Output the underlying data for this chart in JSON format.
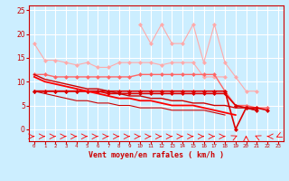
{
  "bg_color": "#cceeff",
  "grid_color": "#ffffff",
  "xlabel": "Vent moyen/en rafales ( km/h )",
  "x": [
    0,
    1,
    2,
    3,
    4,
    5,
    6,
    7,
    8,
    9,
    10,
    11,
    12,
    13,
    14,
    15,
    16,
    17,
    18,
    19,
    20,
    21,
    22,
    23
  ],
  "series": [
    {
      "color": "#ffaaaa",
      "marker": "D",
      "markersize": 2,
      "linewidth": 0.8,
      "data": [
        18,
        14.5,
        14.5,
        14,
        13.5,
        14,
        13,
        13,
        14,
        14,
        14,
        14,
        13.5,
        14,
        14,
        14,
        11,
        11,
        11,
        null,
        null,
        null,
        null,
        null
      ]
    },
    {
      "color": "#ffaaaa",
      "marker": "D",
      "markersize": 2,
      "linewidth": 0.8,
      "data": [
        null,
        null,
        null,
        null,
        null,
        null,
        null,
        null,
        null,
        null,
        22,
        18,
        22,
        18,
        18,
        22,
        14,
        22,
        14,
        11,
        8,
        8,
        null,
        null
      ]
    },
    {
      "color": "#ff6666",
      "marker": "D",
      "markersize": 2,
      "linewidth": 1.0,
      "data": [
        11.5,
        11.5,
        11,
        11,
        11,
        11,
        11,
        11,
        11,
        11,
        11.5,
        11.5,
        11.5,
        11.5,
        11.5,
        11.5,
        11.5,
        11.5,
        8,
        5,
        5,
        4.5,
        4.5,
        null
      ]
    },
    {
      "color": "#dd0000",
      "marker": "D",
      "markersize": 2,
      "linewidth": 1.2,
      "data": [
        8,
        8,
        8,
        8,
        8,
        8,
        8,
        8,
        8,
        8,
        8,
        8,
        8,
        8,
        8,
        8,
        8,
        8,
        8,
        0,
        4.5,
        4.5,
        4,
        null
      ]
    },
    {
      "color": "#dd0000",
      "marker": "D",
      "markersize": 2,
      "linewidth": 1.2,
      "data": [
        8,
        8,
        8,
        8,
        8,
        8,
        8,
        7.5,
        7.5,
        7.5,
        7.5,
        7.5,
        7.5,
        7.5,
        7.5,
        7.5,
        7.5,
        7.5,
        7.5,
        5,
        4.5,
        4,
        null,
        null
      ]
    },
    {
      "color": "#cc0000",
      "marker": null,
      "markersize": 0,
      "linewidth": 1.0,
      "data": [
        11.5,
        10.5,
        10,
        9.5,
        9,
        8.5,
        8.5,
        8,
        7.5,
        7,
        7,
        6.5,
        6.5,
        6,
        6,
        5.5,
        5.5,
        5,
        5,
        4.5,
        4.5,
        4,
        null,
        null
      ]
    },
    {
      "color": "#ff0000",
      "marker": null,
      "markersize": 0,
      "linewidth": 1.3,
      "data": [
        11,
        10,
        9.5,
        9,
        8.5,
        8,
        7.5,
        7,
        6.5,
        6.5,
        6,
        6,
        5.5,
        5,
        5,
        5,
        4.5,
        4,
        3.5,
        3,
        null,
        null,
        null,
        null
      ]
    },
    {
      "color": "#cc0000",
      "marker": null,
      "markersize": 0,
      "linewidth": 0.8,
      "data": [
        8,
        7.5,
        7,
        6.5,
        6,
        6,
        5.5,
        5.5,
        5,
        5,
        4.5,
        4.5,
        4.5,
        4,
        4,
        4,
        4,
        3.5,
        3,
        null,
        null,
        null,
        null,
        null
      ]
    }
  ],
  "wind_arrows_right": [
    19,
    20,
    21,
    22,
    23
  ],
  "wind_arrows_right_angles": [
    45,
    90,
    135,
    180,
    225
  ],
  "ylim": [
    -2.5,
    26
  ],
  "xlim": [
    -0.5,
    23.5
  ],
  "yticks": [
    0,
    5,
    10,
    15,
    20,
    25
  ],
  "xtick_labels": [
    "0",
    "1",
    "2",
    "3",
    "4",
    "5",
    "6",
    "7",
    "8",
    "9",
    "10",
    "11",
    "12",
    "13",
    "14",
    "15",
    "16",
    "17",
    "18",
    "19",
    "20",
    "21",
    "22",
    "23"
  ]
}
